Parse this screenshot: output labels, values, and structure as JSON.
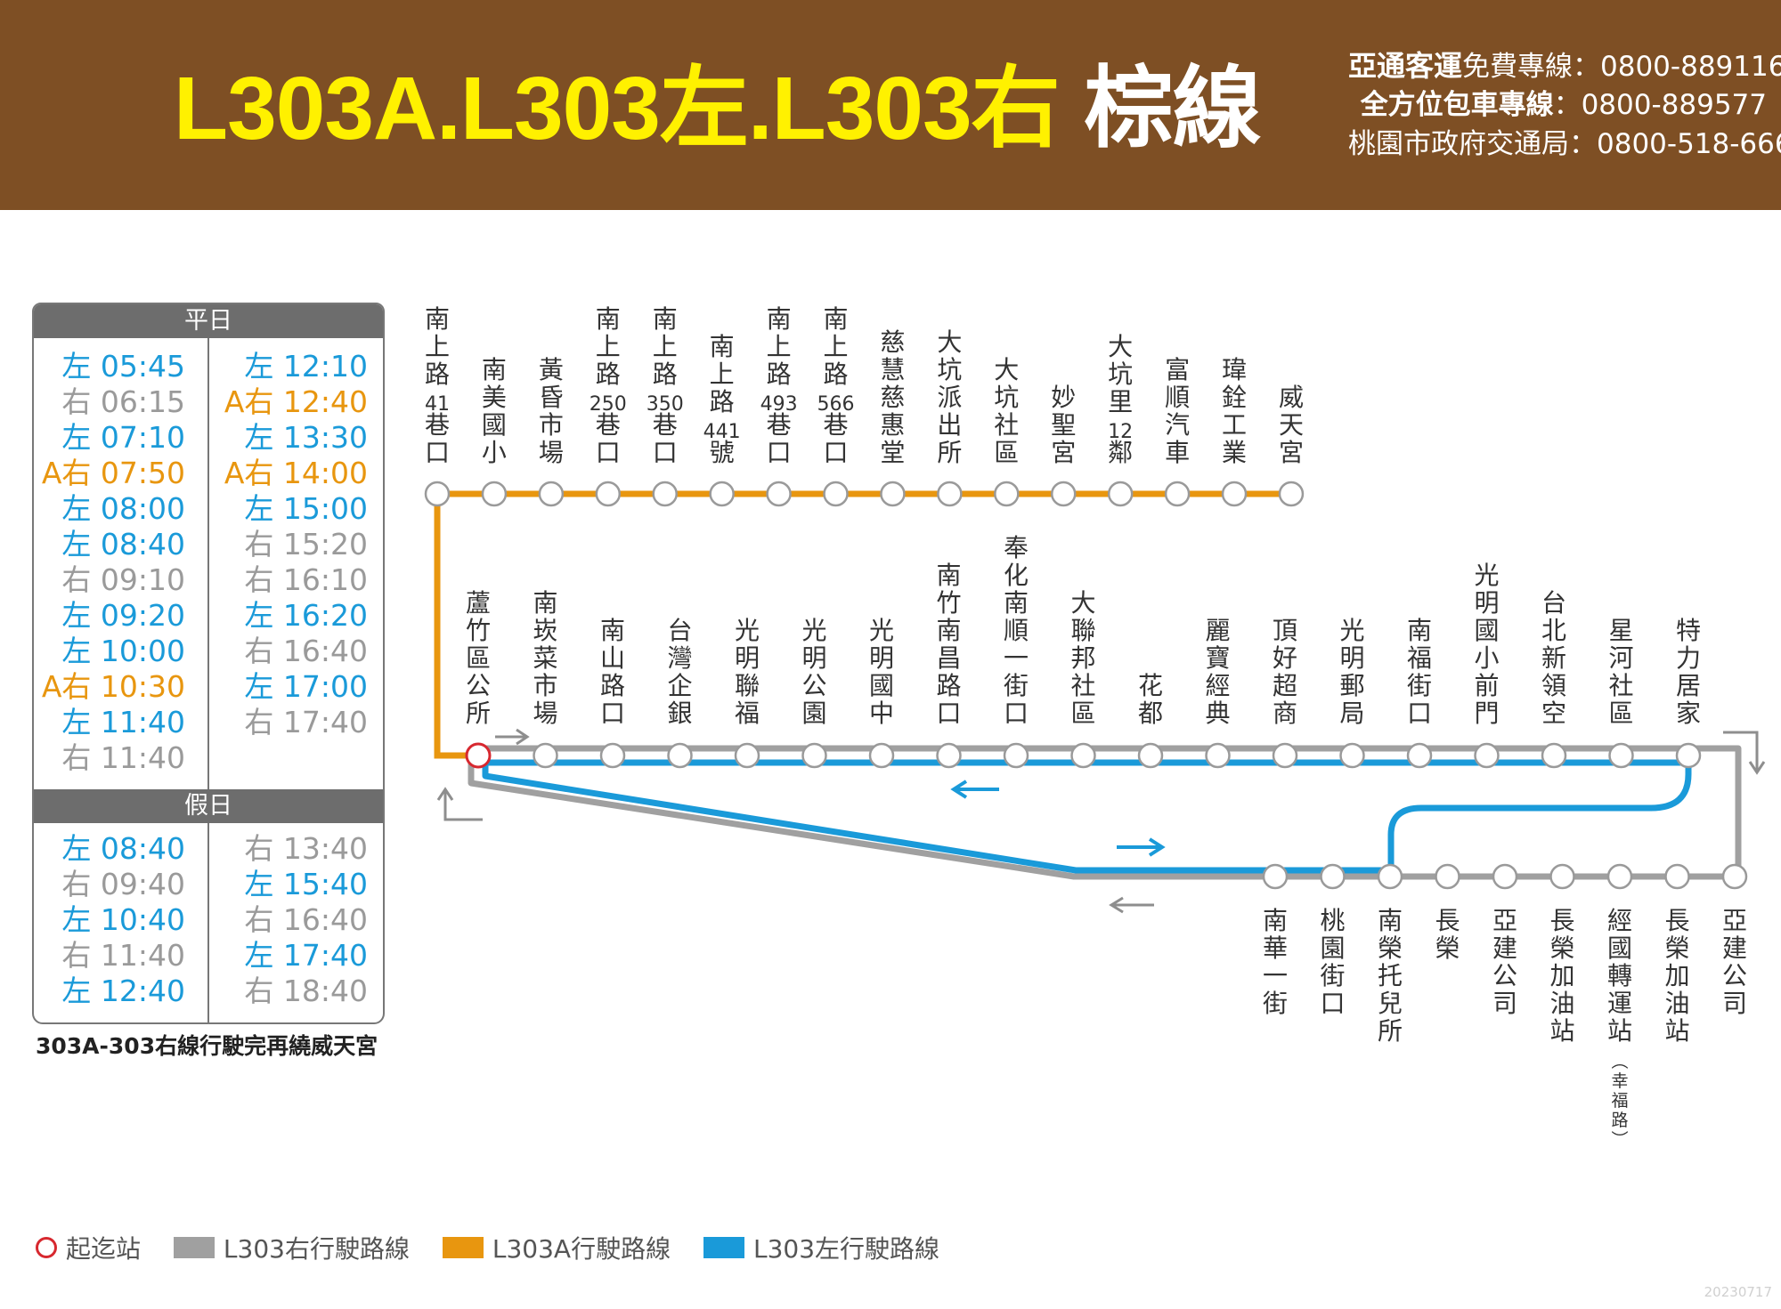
{
  "header": {
    "title_route": "L303A.L303左.L303右",
    "title_color": "棕線",
    "hotlines": [
      {
        "company": "亞通客運",
        "label": "免費專線：0800-889116"
      },
      {
        "company": "全方位包車專線",
        "label": "：0800-889577"
      },
      {
        "company": "",
        "label": "桃園市政府交通局：0800-518-666"
      }
    ]
  },
  "colors": {
    "header_bg": "#7e4f24",
    "title_yellow": "#fff100",
    "l303_right": "#a0a0a0",
    "l303a": "#e8960f",
    "l303_left": "#1a9ad9",
    "terminal": "#d7282f"
  },
  "stations": {
    "orange_row": [
      {
        "id": "o1",
        "name": "南上路41巷口"
      },
      {
        "id": "o2",
        "name": "南美國小"
      },
      {
        "id": "o3",
        "name": "黃昏市場"
      },
      {
        "id": "o4",
        "name": "南上路250巷口"
      },
      {
        "id": "o5",
        "name": "南上路350巷口"
      },
      {
        "id": "o6",
        "name": "南上路441號"
      },
      {
        "id": "o7",
        "name": "南上路493巷口"
      },
      {
        "id": "o8",
        "name": "南上路566巷口"
      },
      {
        "id": "o9",
        "name": "慈慧慈惠堂"
      },
      {
        "id": "o10",
        "name": "大坑派出所"
      },
      {
        "id": "o11",
        "name": "大坑社區"
      },
      {
        "id": "o12",
        "name": "妙聖宮"
      },
      {
        "id": "o13",
        "name": "大坑里12鄰"
      },
      {
        "id": "o14",
        "name": "富順汽車"
      },
      {
        "id": "o15",
        "name": "瑋銓工業"
      },
      {
        "id": "o16",
        "name": "威天宮"
      }
    ],
    "middle_row": [
      {
        "id": "m1",
        "name": "蘆竹區公所"
      },
      {
        "id": "m2",
        "name": "南崁菜市場"
      },
      {
        "id": "m3",
        "name": "南山路口"
      },
      {
        "id": "m4",
        "name": "台灣企銀"
      },
      {
        "id": "m5",
        "name": "光明聯福"
      },
      {
        "id": "m6",
        "name": "光明公園"
      },
      {
        "id": "m7",
        "name": "光明國中"
      },
      {
        "id": "m8",
        "name": "南竹南昌路口"
      },
      {
        "id": "m9",
        "name": "奉化南順一街口"
      },
      {
        "id": "m10",
        "name": "大聯邦社區"
      },
      {
        "id": "m11",
        "name": "花都"
      },
      {
        "id": "m12",
        "name": "麗寶經典"
      },
      {
        "id": "m13",
        "name": "頂好超商"
      },
      {
        "id": "m14",
        "name": "光明郵局"
      },
      {
        "id": "m15",
        "name": "南福街口"
      },
      {
        "id": "m16",
        "name": "光明國小前門"
      },
      {
        "id": "m17",
        "name": "台北新領空"
      },
      {
        "id": "m18",
        "name": "星河社區"
      },
      {
        "id": "m19",
        "name": "特力居家"
      }
    ],
    "bottom_row": [
      {
        "id": "b1",
        "name": "南華一街"
      },
      {
        "id": "b2",
        "name": "桃園街口"
      },
      {
        "id": "b3",
        "name": "南榮托兒所"
      },
      {
        "id": "b4",
        "name": "長榮"
      },
      {
        "id": "b5",
        "name": "亞建公司"
      },
      {
        "id": "b6",
        "name": "長榮加油站"
      },
      {
        "id": "b7",
        "name": "經國轉運站",
        "sub": "（幸福路）"
      },
      {
        "id": "b8",
        "name": "長榮加油站"
      },
      {
        "id": "b9",
        "name": "亞建公司"
      }
    ]
  },
  "timetable": {
    "weekday_header": "平日",
    "holiday_header": "假日",
    "weekday": {
      "left_col": [
        {
          "route": "左",
          "time": "05:45",
          "type": "left"
        },
        {
          "route": "右",
          "time": "06:15",
          "type": "right"
        },
        {
          "route": "左",
          "time": "07:10",
          "type": "left"
        },
        {
          "route": "A右",
          "time": "07:50",
          "type": "a"
        },
        {
          "route": "左",
          "time": "08:00",
          "type": "left"
        },
        {
          "route": "左",
          "time": "08:40",
          "type": "left"
        },
        {
          "route": "右",
          "time": "09:10",
          "type": "right"
        },
        {
          "route": "左",
          "time": "09:20",
          "type": "left"
        },
        {
          "route": "左",
          "time": "10:00",
          "type": "left"
        },
        {
          "route": "A右",
          "time": "10:30",
          "type": "a"
        },
        {
          "route": "左",
          "time": "11:40",
          "type": "left"
        },
        {
          "route": "右",
          "time": "11:40",
          "type": "right"
        }
      ],
      "right_col": [
        {
          "route": "左",
          "time": "12:10",
          "type": "left"
        },
        {
          "route": "A右",
          "time": "12:40",
          "type": "a"
        },
        {
          "route": "左",
          "time": "13:30",
          "type": "left"
        },
        {
          "route": "A右",
          "time": "14:00",
          "type": "a"
        },
        {
          "route": "左",
          "time": "15:00",
          "type": "left"
        },
        {
          "route": "右",
          "time": "15:20",
          "type": "right"
        },
        {
          "route": "右",
          "time": "16:10",
          "type": "right"
        },
        {
          "route": "左",
          "time": "16:20",
          "type": "left"
        },
        {
          "route": "右",
          "time": "16:40",
          "type": "right"
        },
        {
          "route": "左",
          "time": "17:00",
          "type": "left"
        },
        {
          "route": "右",
          "time": "17:40",
          "type": "right"
        }
      ]
    },
    "holiday": {
      "left_col": [
        {
          "route": "左",
          "time": "08:40",
          "type": "left"
        },
        {
          "route": "右",
          "time": "09:40",
          "type": "right"
        },
        {
          "route": "左",
          "time": "10:40",
          "type": "left"
        },
        {
          "route": "右",
          "time": "11:40",
          "type": "right"
        },
        {
          "route": "左",
          "time": "12:40",
          "type": "left"
        }
      ],
      "right_col": [
        {
          "route": "右",
          "time": "13:40",
          "type": "right"
        },
        {
          "route": "左",
          "time": "15:40",
          "type": "left"
        },
        {
          "route": "右",
          "time": "16:40",
          "type": "right"
        },
        {
          "route": "左",
          "time": "17:40",
          "type": "left"
        },
        {
          "route": "右",
          "time": "18:40",
          "type": "right"
        }
      ]
    },
    "note": "303A-303右線行駛完再繞威天宮"
  },
  "legend": {
    "terminal": "起迄站",
    "l303_right": "L303右行駛路線",
    "l303a": "L303A行駛路線",
    "l303_left": "L303左行駛路線"
  },
  "datecode": "20230717"
}
